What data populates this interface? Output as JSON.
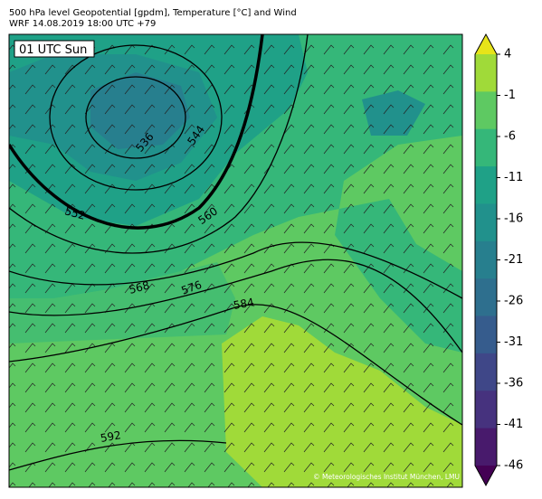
{
  "header": {
    "title": "500 hPa level Geopotential [gpdm], Temperature [°C] and Wind",
    "subtitle": "WRF 14.08.2019 18:00 UTC +79"
  },
  "map": {
    "time_label": "01 UTC Sun",
    "contour_labels": [
      "536",
      "544",
      "552",
      "560",
      "568",
      "576",
      "584",
      "592"
    ],
    "credit": "© Meteorologisches Institut München, LMU"
  },
  "colorbar": {
    "ticks": [
      4,
      -1,
      -6,
      -11,
      -16,
      -21,
      -26,
      -31,
      -36,
      -41,
      -46
    ],
    "colors": [
      "#e7e419",
      "#a0da39",
      "#5ec962",
      "#35b779",
      "#1fa187",
      "#21918c",
      "#277f8e",
      "#2e6f8e",
      "#365c8d",
      "#3f4788",
      "#46327e",
      "#481a6c",
      "#440154"
    ]
  }
}
